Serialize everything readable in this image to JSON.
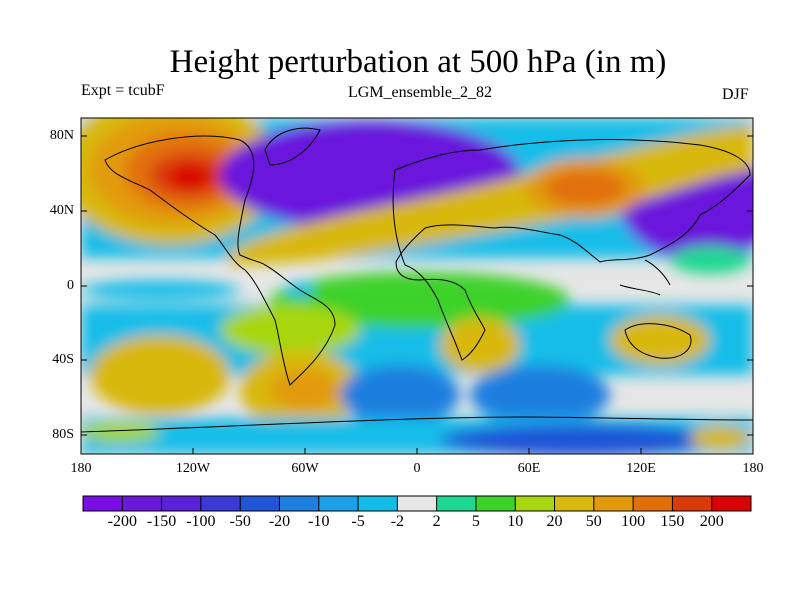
{
  "title": "Height perturbation at 500 hPa (in m)",
  "experiment_label": "Expt = tcubF",
  "ensemble_label": "LGM_ensemble_2_82",
  "season_label": "DJF",
  "lat_labels": [
    "80N",
    "40N",
    "0",
    "40S",
    "80S"
  ],
  "lon_labels": [
    "180",
    "120W",
    "60W",
    "0",
    "60E",
    "120E",
    "180"
  ],
  "colorbar": {
    "labels": [
      "-200",
      "-150",
      "-100",
      "-50",
      "-20",
      "-10",
      "-5",
      "-2",
      "2",
      "5",
      "10",
      "20",
      "50",
      "100",
      "150",
      "200"
    ],
    "colors": [
      "#7a0ee6",
      "#6a18dc",
      "#5a22d8",
      "#3a3ad6",
      "#1f55d6",
      "#1e7fe0",
      "#1aa0e6",
      "#12bde8",
      "#e6e6e6",
      "#1cd890",
      "#3cd22a",
      "#a8d610",
      "#d8b80c",
      "#e29a0a",
      "#e2700a",
      "#da3a08",
      "#d80404"
    ]
  }
}
